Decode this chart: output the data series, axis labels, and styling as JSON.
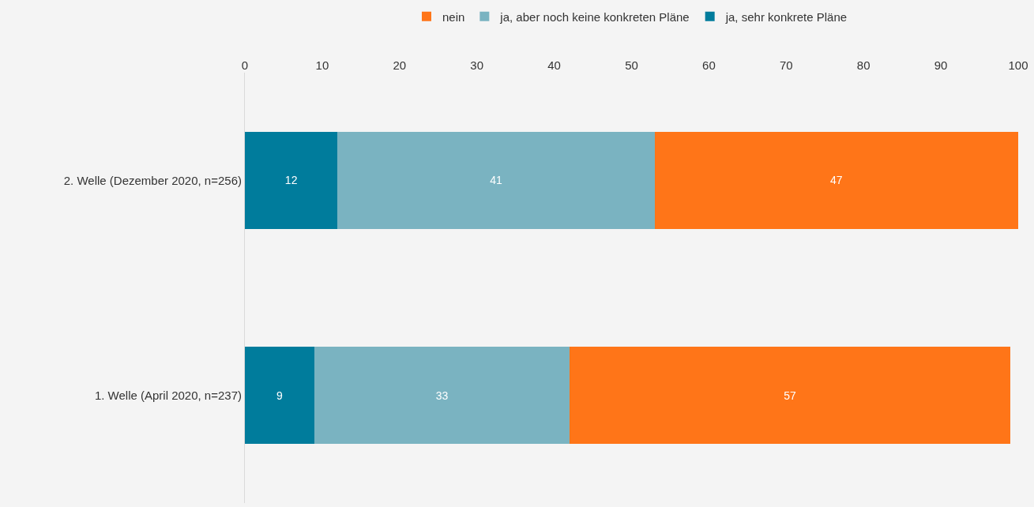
{
  "chart_data": {
    "type": "bar",
    "orientation": "horizontal",
    "stacked": true,
    "categories": [
      "2. Welle (Dezember 2020, n=256)",
      "1. Welle (April 2020, n=237)"
    ],
    "series": [
      {
        "name": "ja, sehr konkrete Pläne",
        "color": "#007c9c",
        "values": [
          12,
          9
        ]
      },
      {
        "name": "ja, aber noch keine konkreten Pläne",
        "color": "#7ab3c1",
        "values": [
          41,
          33
        ]
      },
      {
        "name": "nein",
        "color": "#ff7518",
        "values": [
          47,
          57
        ]
      }
    ],
    "xlim": [
      0,
      100
    ],
    "xticks": [
      0,
      10,
      20,
      30,
      40,
      50,
      60,
      70,
      80,
      90,
      100
    ],
    "data_labels": true,
    "legend": "top",
    "grid": false
  }
}
